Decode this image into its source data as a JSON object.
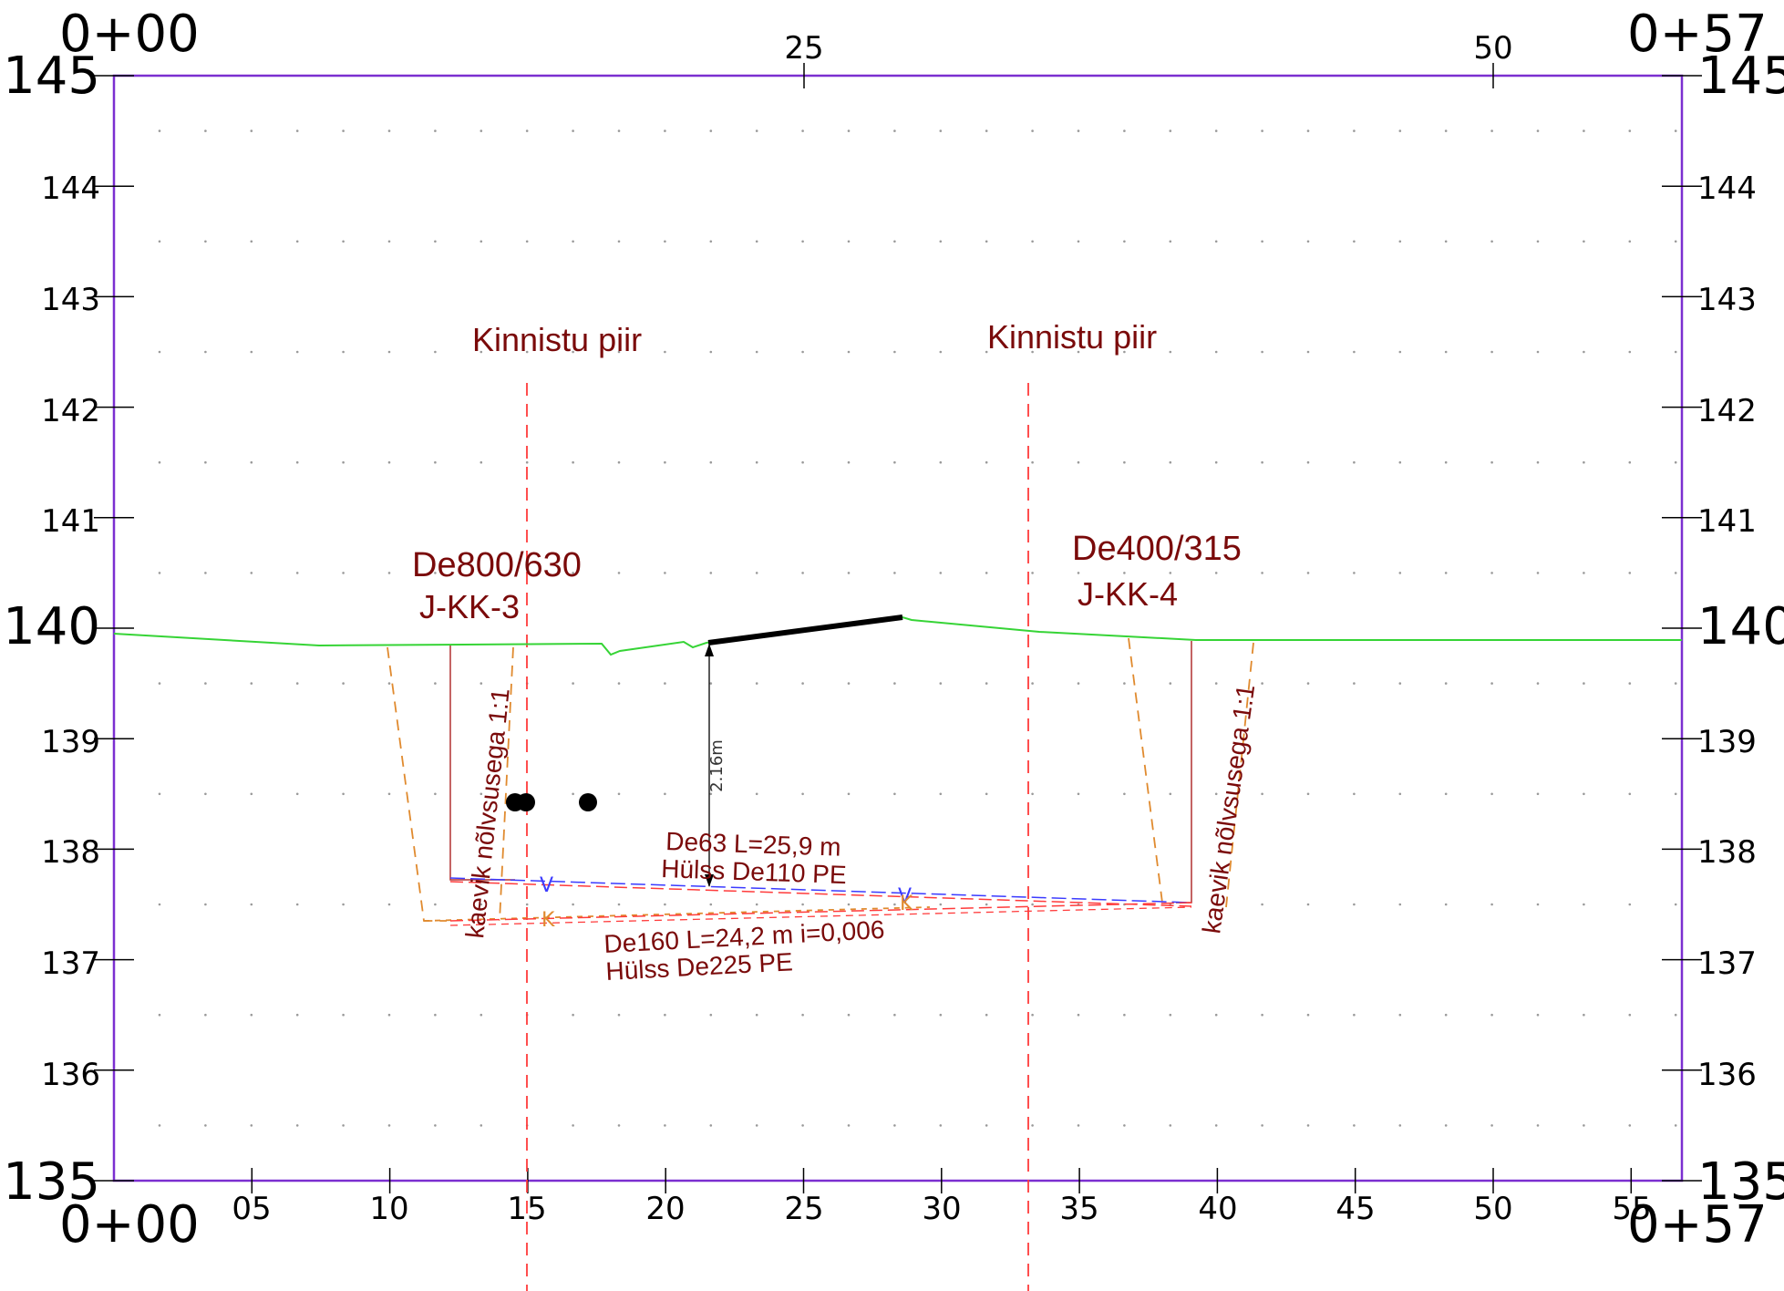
{
  "drawing": {
    "chainage_start": "0+00",
    "chainage_end": "0+57",
    "top_ticks": [
      "25",
      "50"
    ],
    "bottom_ticks": [
      "05",
      "10",
      "15",
      "20",
      "25",
      "30",
      "35",
      "40",
      "45",
      "50",
      "55"
    ],
    "elevation_labels": [
      "145",
      "144",
      "143",
      "142",
      "141",
      "140",
      "139",
      "138",
      "137",
      "136",
      "135"
    ]
  },
  "annotations": {
    "property_line_left": "Kinnistu piir",
    "property_line_right": "Kinnistu piir",
    "well_left_size": "De800/630",
    "well_left_id": "J-KK-3",
    "well_right_size": "De400/315",
    "well_right_id": "J-KK-4",
    "trench_left": "kaevik nõlvsusega 1:1",
    "trench_right": "kaevik nõlvsusega 1:1",
    "water_pipe_line1": "De63 L=25,9 m",
    "water_pipe_line2": "Hülss De110 PE",
    "sewer_pipe_line1": "De160 L=24,2 m i=0,006",
    "sewer_pipe_line2": "Hülss De225 PE",
    "depth_dimension": "2.16m",
    "marker_v1": "V",
    "marker_v2": "V",
    "marker_k1": "K",
    "marker_k2": "K"
  },
  "colors": {
    "frame": "#7b2fd0",
    "ground": "#36d436",
    "property_line": "#ff3b3b",
    "trench_slope": "#e08a2e",
    "pipe_blue": "#3b3bff",
    "pipe_red": "#ff3b3b",
    "label_red": "#7a0a0a",
    "well_outline": "#b03030"
  }
}
